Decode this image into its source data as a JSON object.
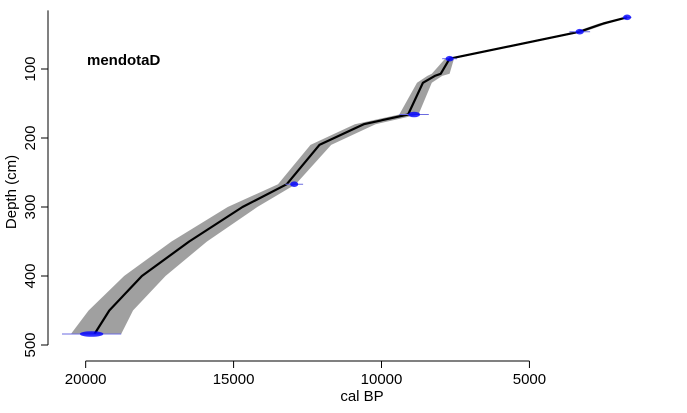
{
  "chart_data": {
    "type": "line",
    "title": "mendotaD",
    "xlabel": "cal BP",
    "ylabel": "Depth (cm)",
    "x_reversed": true,
    "y_reversed": true,
    "xlim": [
      20800,
      350
    ],
    "ylim": [
      0,
      500
    ],
    "x_ticks": [
      20000,
      15000,
      10000,
      5000
    ],
    "x_tick_labels": [
      "20000",
      "15000",
      "10000",
      "5000"
    ],
    "y_ticks": [
      100,
      200,
      300,
      400,
      500
    ],
    "y_tick_labels": [
      "100",
      "200",
      "300",
      "400",
      "500"
    ],
    "age_model": {
      "depth": [
        25,
        34,
        46,
        85,
        107,
        110,
        120,
        166,
        180,
        210,
        267,
        300,
        350,
        400,
        450,
        484
      ],
      "cal_bp": [
        1700,
        2500,
        3300,
        7700,
        8000,
        8200,
        8600,
        9100,
        10600,
        12100,
        13200,
        14700,
        16500,
        18100,
        19200,
        19700
      ],
      "lower": [
        1650,
        2350,
        3150,
        7550,
        7700,
        7950,
        8300,
        8750,
        10200,
        11700,
        12900,
        14200,
        15900,
        17300,
        18400,
        18800
      ],
      "upper": [
        1750,
        2650,
        3450,
        7850,
        8300,
        8450,
        8800,
        9400,
        10900,
        12400,
        13500,
        15200,
        17100,
        18700,
        19900,
        20500
      ]
    },
    "dates": [
      {
        "depth": 25,
        "cal_bp": 1700,
        "err": 150
      },
      {
        "depth": 46,
        "cal_bp": 3300,
        "err": 350
      },
      {
        "depth": 85,
        "cal_bp": 7700,
        "err": 250
      },
      {
        "depth": 166,
        "cal_bp": 8900,
        "err": 500
      },
      {
        "depth": 267,
        "cal_bp": 12950,
        "err": 300
      },
      {
        "depth": 484,
        "cal_bp": 19800,
        "err": 1000
      }
    ],
    "colors": {
      "model_line": "#000000",
      "envelope": "#a0a0a0",
      "dates": "#0000ff",
      "date_err": "#6b6be0"
    }
  }
}
